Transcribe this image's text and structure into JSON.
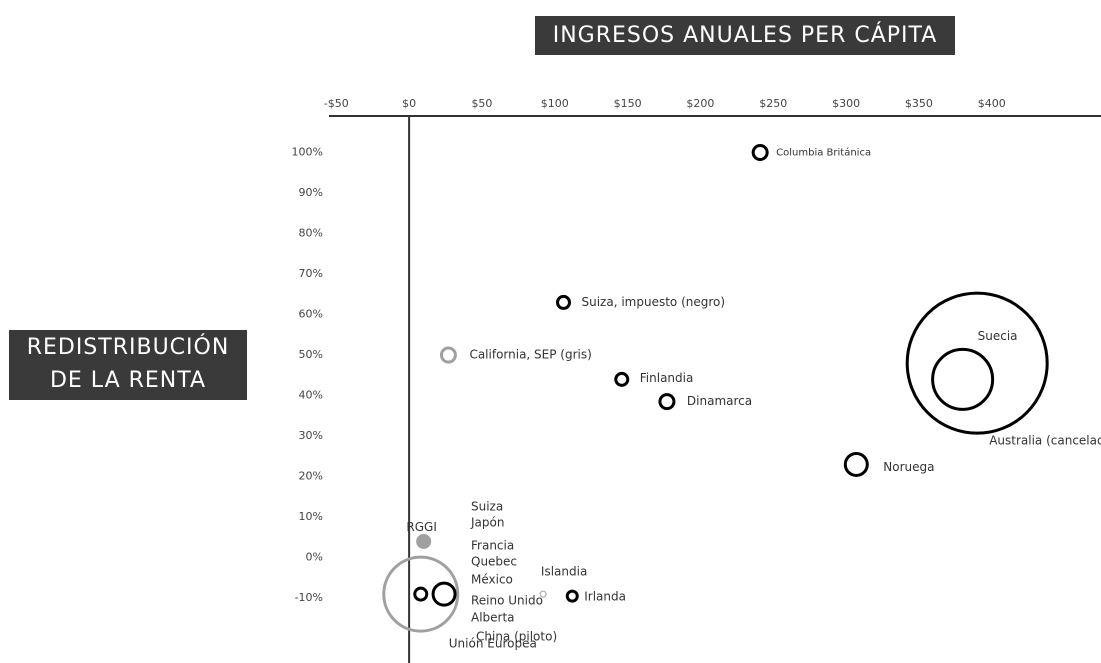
{
  "chart_data": {
    "type": "bubble",
    "title": "INGRESOS ANUALES PER CÁPITA",
    "ylabel": [
      "REDISTRIBUCIÓN",
      "DE LA RENTA"
    ],
    "xlim": [
      -55,
      475
    ],
    "ylim": [
      -26,
      109
    ],
    "xticks": [
      {
        "value": -50,
        "label": "-$50"
      },
      {
        "value": 0,
        "label": "$0"
      },
      {
        "value": 50,
        "label": "$50"
      },
      {
        "value": 100,
        "label": "$100"
      },
      {
        "value": 150,
        "label": "$150"
      },
      {
        "value": 200,
        "label": "$200"
      },
      {
        "value": 250,
        "label": "$250"
      },
      {
        "value": 300,
        "label": "$300"
      },
      {
        "value": 350,
        "label": "$350"
      },
      {
        "value": 400,
        "label": "$400"
      }
    ],
    "yticks": [
      {
        "value": 100,
        "label": "100%"
      },
      {
        "value": 90,
        "label": "90%"
      },
      {
        "value": 80,
        "label": "80%"
      },
      {
        "value": 70,
        "label": "70%"
      },
      {
        "value": 60,
        "label": "60%"
      },
      {
        "value": 50,
        "label": "50%"
      },
      {
        "value": 40,
        "label": "40%"
      },
      {
        "value": 30,
        "label": "30%"
      },
      {
        "value": 20,
        "label": "20%"
      },
      {
        "value": 10,
        "label": "10%"
      },
      {
        "value": 0,
        "label": "0%"
      },
      {
        "value": -10,
        "label": "-10%"
      }
    ],
    "points": [
      {
        "name": "Columbia Británica",
        "x": 241,
        "y": 100,
        "size": 7,
        "color": "#000000"
      },
      {
        "name": "Suiza, impuesto (negro)",
        "x": 106,
        "y": 63,
        "size": 6,
        "color": "#000000"
      },
      {
        "name": "California, SEP (gris)",
        "x": 27,
        "y": 50,
        "size": 7,
        "color": "#a0a0a0"
      },
      {
        "name": "Finlandia",
        "x": 146,
        "y": 44,
        "size": 6,
        "color": "#000000"
      },
      {
        "name": "Dinamarca",
        "x": 177,
        "y": 38.5,
        "size": 7,
        "color": "#000000"
      },
      {
        "name": "Suecia",
        "x": 380,
        "y": 44,
        "size": 30,
        "color": "#000000"
      },
      {
        "name": "Australia (cancelado)",
        "x": 390,
        "y": 48,
        "size": 70,
        "color": "#000000"
      },
      {
        "name": "Noruega",
        "x": 307,
        "y": 23,
        "size": 11,
        "color": "#000000"
      },
      {
        "name": "RGGI",
        "x": 10,
        "y": 4,
        "size": 6,
        "color": "#a0a0a0",
        "filled": true
      },
      {
        "name": "Unión Europea",
        "x": 8,
        "y": -9,
        "size": 37,
        "color": "#a0a0a0"
      },
      {
        "x": 8,
        "y": -9,
        "size": 6,
        "color": "#000000"
      },
      {
        "x": 24,
        "y": -9,
        "size": 11,
        "color": "#000000"
      },
      {
        "name": "Islandia",
        "x": 92,
        "y": -9,
        "size": 3,
        "color": "#a0a0a0"
      },
      {
        "name": "Irlanda",
        "x": 112,
        "y": -9.5,
        "size": 5,
        "color": "#000000"
      }
    ],
    "cluster_labels": [
      "Suiza",
      "Japón",
      "Francia",
      "Quebec",
      "México",
      "Reino Unido",
      "Alberta",
      "China (piloto)"
    ]
  }
}
